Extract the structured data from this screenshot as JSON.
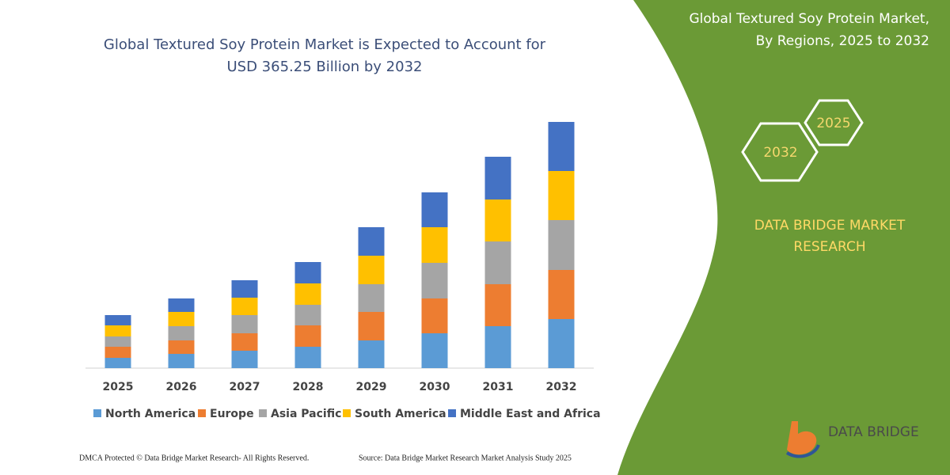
{
  "chart_data": {
    "type": "stacked-bar",
    "title": [
      "Global Textured Soy Protein Market is Expected to Account for",
      "USD 365.25 Billion by 2032"
    ],
    "categories": [
      "2025",
      "2026",
      "2027",
      "2028",
      "2029",
      "2030",
      "2031",
      "2032"
    ],
    "series": [
      {
        "name": "North America",
        "color": "#5b9bd5",
        "values": [
          13,
          18,
          22,
          27,
          35,
          44,
          53,
          62
        ]
      },
      {
        "name": "Europe",
        "color": "#ed7d31",
        "values": [
          14,
          17,
          22,
          27,
          36,
          44,
          53,
          62
        ]
      },
      {
        "name": "Asia Pacific",
        "color": "#a5a5a5",
        "values": [
          13,
          18,
          23,
          26,
          35,
          45,
          54,
          63
        ]
      },
      {
        "name": "South America",
        "color": "#ffc000",
        "values": [
          14,
          18,
          22,
          27,
          36,
          45,
          53,
          62
        ]
      },
      {
        "name": "Middle East and Africa",
        "color": "#4472c4",
        "values": [
          13,
          17,
          22,
          27,
          36,
          44,
          54,
          62
        ]
      }
    ],
    "ylim": [
      0,
      320
    ]
  },
  "panel": {
    "title": [
      "Global Textured Soy Protein Market,",
      "By Regions, 2025 to 2032"
    ],
    "hex_years": [
      "2025",
      "2032"
    ],
    "brand": [
      "DATA BRIDGE MARKET",
      "RESEARCH"
    ],
    "logo": "DATA BRIDGE"
  },
  "footer": {
    "rights": "DMCA Protected © Data Bridge Market Research-  All Rights Reserved.",
    "source": "Source: Data Bridge Market Research  Market Analysis Study 2025"
  }
}
